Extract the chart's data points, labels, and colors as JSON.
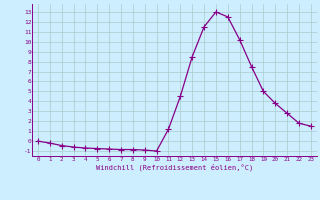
{
  "x": [
    0,
    1,
    2,
    3,
    4,
    5,
    6,
    7,
    8,
    9,
    10,
    11,
    12,
    13,
    14,
    15,
    16,
    17,
    18,
    19,
    20,
    21,
    22,
    23
  ],
  "y": [
    0.0,
    -0.2,
    -0.45,
    -0.6,
    -0.7,
    -0.75,
    -0.8,
    -0.85,
    -0.85,
    -0.9,
    -1.0,
    1.2,
    4.5,
    8.5,
    11.5,
    13.0,
    12.5,
    10.2,
    7.5,
    5.0,
    3.8,
    2.8,
    1.8,
    1.5
  ],
  "line_color": "#880088",
  "marker": "+",
  "marker_color": "#880088",
  "bg_color": "#cceeff",
  "grid_color": "#aacccc",
  "xlabel": "Windchill (Refroidissement éolien,°C)",
  "xlabel_color": "#880088",
  "tick_color": "#880088",
  "ylim": [
    -1.5,
    13.8
  ],
  "xlim": [
    -0.5,
    23.5
  ],
  "yticks": [
    -1,
    0,
    1,
    2,
    3,
    4,
    5,
    6,
    7,
    8,
    9,
    10,
    11,
    12,
    13
  ],
  "xticks": [
    0,
    1,
    2,
    3,
    4,
    5,
    6,
    7,
    8,
    9,
    10,
    11,
    12,
    13,
    14,
    15,
    16,
    17,
    18,
    19,
    20,
    21,
    22,
    23
  ],
  "spine_color": "#880088",
  "line_width": 0.9,
  "marker_size": 4
}
